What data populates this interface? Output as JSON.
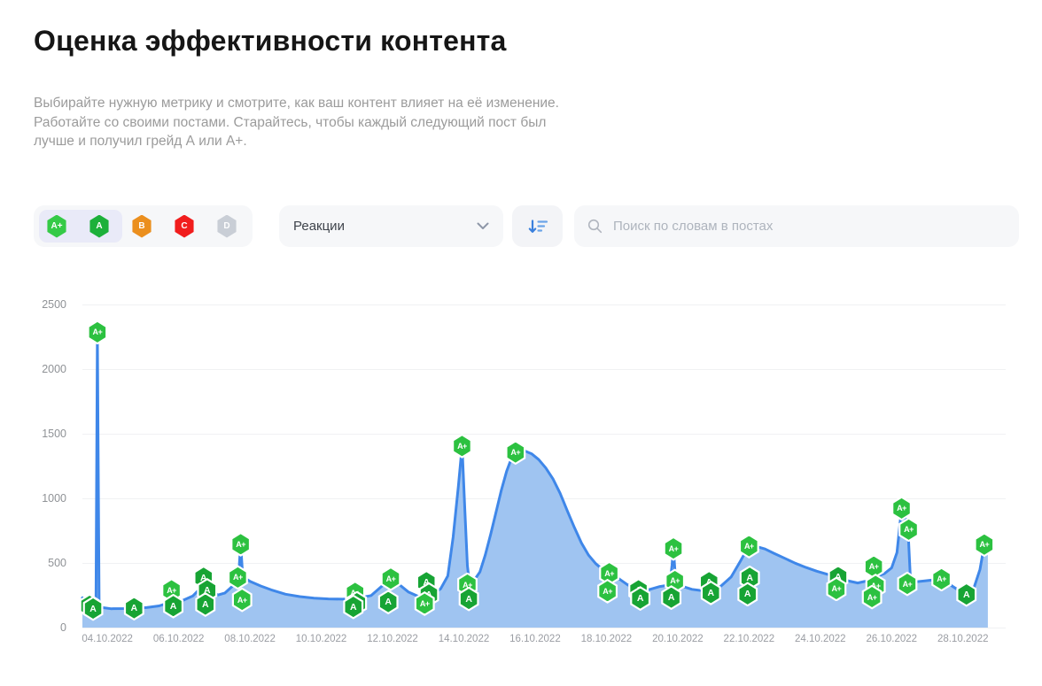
{
  "page": {
    "title": "Оценка эффективности контента",
    "description": "Выбирайте нужную метрику и смотрите, как ваш контент влияет на её изменение. Работайте со своими постами. Старайтесь, чтобы каждый следующий пост был лучше и получил грейд А или А+."
  },
  "filters": {
    "grades": [
      {
        "label": "A+",
        "color": "#35ca47",
        "selected": true
      },
      {
        "label": "A",
        "color": "#1cb03a",
        "selected": true
      },
      {
        "label": "B",
        "color": "#eb8f1e",
        "selected": false
      },
      {
        "label": "C",
        "color": "#f11d1d",
        "selected": false
      },
      {
        "label": "D",
        "color": "#c9ced6",
        "selected": false
      }
    ],
    "metric_dropdown": {
      "value": "Реакции"
    },
    "search": {
      "placeholder": "Поиск по словам в постах"
    }
  },
  "chart_data": {
    "type": "area",
    "title": "",
    "xlabel": "",
    "ylabel": "",
    "series_name": "Реакции",
    "grid": true,
    "ylim": [
      0,
      2500
    ],
    "y_ticks": [
      0,
      500,
      1000,
      1500,
      2000,
      2500
    ],
    "x_tick_labels": [
      "04.10.2022",
      "06.10.2022",
      "08.10.2022",
      "10.10.2022",
      "12.10.2022",
      "14.10.2022",
      "16.10.2022",
      "18.10.2022",
      "20.10.2022",
      "22.10.2022",
      "24.10.2022",
      "26.10.2022",
      "28.10.2022"
    ],
    "x_tick_days": [
      4,
      6,
      8,
      10,
      12,
      14,
      16,
      18,
      20,
      22,
      24,
      26,
      28
    ],
    "day_range": [
      3.3,
      29.2
    ],
    "line_color": "#3f87e9",
    "fill_color": "#9fc4f1",
    "grade_colors": {
      "A+": "#2cc140",
      "A": "#17a434"
    },
    "line": [
      [
        3.3,
        230
      ],
      [
        3.45,
        185
      ],
      [
        3.55,
        165
      ],
      [
        3.62,
        150
      ],
      [
        3.68,
        155
      ],
      [
        3.72,
        2285
      ],
      [
        3.77,
        158
      ],
      [
        4.1,
        146
      ],
      [
        4.5,
        147
      ],
      [
        4.75,
        150
      ],
      [
        5.1,
        155
      ],
      [
        5.45,
        168
      ],
      [
        5.8,
        198
      ],
      [
        6.1,
        208
      ],
      [
        6.4,
        245
      ],
      [
        6.65,
        315
      ],
      [
        6.8,
        332
      ],
      [
        6.95,
        278
      ],
      [
        7.1,
        252
      ],
      [
        7.3,
        268
      ],
      [
        7.55,
        330
      ],
      [
        7.68,
        390
      ],
      [
        7.74,
        645
      ],
      [
        7.8,
        392
      ],
      [
        8.0,
        358
      ],
      [
        8.3,
        322
      ],
      [
        8.6,
        292
      ],
      [
        9.0,
        258
      ],
      [
        9.4,
        240
      ],
      [
        9.8,
        228
      ],
      [
        10.2,
        222
      ],
      [
        10.6,
        220
      ],
      [
        11.0,
        226
      ],
      [
        11.4,
        248
      ],
      [
        11.7,
        320
      ],
      [
        11.95,
        390
      ],
      [
        12.2,
        330
      ],
      [
        12.45,
        275
      ],
      [
        12.75,
        238
      ],
      [
        13.1,
        256
      ],
      [
        13.35,
        300
      ],
      [
        13.55,
        400
      ],
      [
        13.7,
        700
      ],
      [
        13.85,
        1100
      ],
      [
        13.95,
        1405
      ],
      [
        14.03,
        900
      ],
      [
        14.1,
        480
      ],
      [
        14.16,
        340
      ],
      [
        14.3,
        370
      ],
      [
        14.45,
        430
      ],
      [
        14.6,
        560
      ],
      [
        14.75,
        720
      ],
      [
        14.9,
        890
      ],
      [
        15.05,
        1060
      ],
      [
        15.2,
        1210
      ],
      [
        15.35,
        1320
      ],
      [
        15.5,
        1372
      ],
      [
        15.7,
        1368
      ],
      [
        15.9,
        1345
      ],
      [
        16.1,
        1300
      ],
      [
        16.3,
        1235
      ],
      [
        16.5,
        1150
      ],
      [
        16.7,
        1040
      ],
      [
        16.9,
        905
      ],
      [
        17.1,
        775
      ],
      [
        17.3,
        655
      ],
      [
        17.5,
        560
      ],
      [
        17.7,
        495
      ],
      [
        17.9,
        448
      ],
      [
        18.1,
        420
      ],
      [
        18.35,
        378
      ],
      [
        18.6,
        330
      ],
      [
        18.9,
        298
      ],
      [
        19.2,
        294
      ],
      [
        19.5,
        318
      ],
      [
        19.78,
        330
      ],
      [
        19.84,
        480
      ],
      [
        19.88,
        612
      ],
      [
        19.94,
        368
      ],
      [
        20.1,
        322
      ],
      [
        20.4,
        296
      ],
      [
        20.7,
        285
      ],
      [
        20.95,
        292
      ],
      [
        21.2,
        318
      ],
      [
        21.5,
        392
      ],
      [
        21.75,
        510
      ],
      [
        22.0,
        632
      ],
      [
        22.2,
        628
      ],
      [
        22.45,
        608
      ],
      [
        22.7,
        575
      ],
      [
        23.0,
        536
      ],
      [
        23.3,
        498
      ],
      [
        23.6,
        465
      ],
      [
        23.9,
        436
      ],
      [
        24.2,
        412
      ],
      [
        24.5,
        392
      ],
      [
        24.8,
        360
      ],
      [
        25.05,
        345
      ],
      [
        25.3,
        360
      ],
      [
        25.55,
        392
      ],
      [
        25.8,
        418
      ],
      [
        26.0,
        462
      ],
      [
        26.15,
        580
      ],
      [
        26.28,
        922
      ],
      [
        26.38,
        855
      ],
      [
        26.46,
        760
      ],
      [
        26.52,
        420
      ],
      [
        26.6,
        352
      ],
      [
        26.9,
        360
      ],
      [
        27.15,
        368
      ],
      [
        27.4,
        374
      ],
      [
        27.65,
        330
      ],
      [
        27.9,
        285
      ],
      [
        28.1,
        258
      ],
      [
        28.3,
        300
      ],
      [
        28.48,
        450
      ],
      [
        28.6,
        642
      ],
      [
        28.7,
        625
      ]
    ],
    "posts": [
      {
        "day": 3.5,
        "value": 168,
        "grade": "A"
      },
      {
        "day": 3.6,
        "value": 147,
        "grade": "A"
      },
      {
        "day": 3.72,
        "value": 2285,
        "grade": "A+"
      },
      {
        "day": 4.75,
        "value": 150,
        "grade": "A"
      },
      {
        "day": 5.8,
        "value": 288,
        "grade": "A+"
      },
      {
        "day": 5.85,
        "value": 166,
        "grade": "A"
      },
      {
        "day": 6.7,
        "value": 385,
        "grade": "A"
      },
      {
        "day": 6.8,
        "value": 288,
        "grade": "A"
      },
      {
        "day": 6.75,
        "value": 178,
        "grade": "A"
      },
      {
        "day": 7.66,
        "value": 388,
        "grade": "A+"
      },
      {
        "day": 7.74,
        "value": 645,
        "grade": "A+"
      },
      {
        "day": 7.78,
        "value": 215,
        "grade": "A+"
      },
      {
        "day": 10.95,
        "value": 268,
        "grade": "A+"
      },
      {
        "day": 11.0,
        "value": 188,
        "grade": "A"
      },
      {
        "day": 10.9,
        "value": 160,
        "grade": "A"
      },
      {
        "day": 11.95,
        "value": 378,
        "grade": "A+"
      },
      {
        "day": 11.88,
        "value": 198,
        "grade": "A"
      },
      {
        "day": 12.95,
        "value": 350,
        "grade": "A"
      },
      {
        "day": 13.02,
        "value": 255,
        "grade": "A"
      },
      {
        "day": 12.9,
        "value": 185,
        "grade": "A+"
      },
      {
        "day": 13.95,
        "value": 1405,
        "grade": "A+"
      },
      {
        "day": 14.1,
        "value": 332,
        "grade": "A+"
      },
      {
        "day": 14.14,
        "value": 222,
        "grade": "A"
      },
      {
        "day": 15.45,
        "value": 1355,
        "grade": "A+"
      },
      {
        "day": 18.08,
        "value": 420,
        "grade": "A+"
      },
      {
        "day": 18.03,
        "value": 282,
        "grade": "A+"
      },
      {
        "day": 18.9,
        "value": 288,
        "grade": "A"
      },
      {
        "day": 18.95,
        "value": 225,
        "grade": "A"
      },
      {
        "day": 19.88,
        "value": 612,
        "grade": "A+"
      },
      {
        "day": 19.92,
        "value": 360,
        "grade": "A+"
      },
      {
        "day": 19.82,
        "value": 232,
        "grade": "A"
      },
      {
        "day": 20.88,
        "value": 350,
        "grade": "A"
      },
      {
        "day": 20.93,
        "value": 268,
        "grade": "A"
      },
      {
        "day": 22.0,
        "value": 630,
        "grade": "A+"
      },
      {
        "day": 22.02,
        "value": 385,
        "grade": "A"
      },
      {
        "day": 21.96,
        "value": 258,
        "grade": "A"
      },
      {
        "day": 24.5,
        "value": 390,
        "grade": "A"
      },
      {
        "day": 24.45,
        "value": 298,
        "grade": "A+"
      },
      {
        "day": 25.5,
        "value": 472,
        "grade": "A+"
      },
      {
        "day": 25.55,
        "value": 322,
        "grade": "A+"
      },
      {
        "day": 25.45,
        "value": 236,
        "grade": "A+"
      },
      {
        "day": 26.28,
        "value": 922,
        "grade": "A+"
      },
      {
        "day": 26.48,
        "value": 758,
        "grade": "A+"
      },
      {
        "day": 26.44,
        "value": 338,
        "grade": "A+"
      },
      {
        "day": 27.4,
        "value": 374,
        "grade": "A+"
      },
      {
        "day": 28.1,
        "value": 256,
        "grade": "A"
      },
      {
        "day": 28.6,
        "value": 642,
        "grade": "A+"
      }
    ]
  }
}
